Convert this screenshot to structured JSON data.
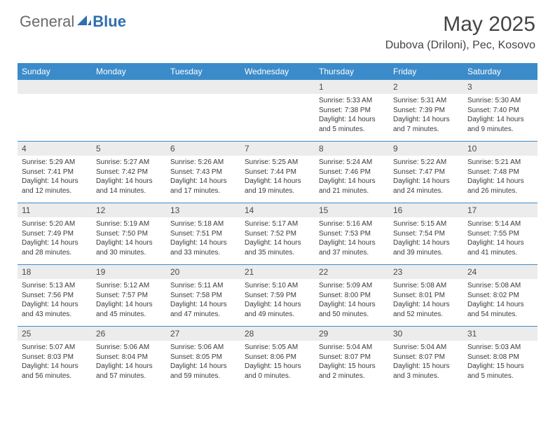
{
  "brand": {
    "part1": "General",
    "part2": "Blue"
  },
  "colors": {
    "header_bg": "#3b8bca",
    "header_text": "#ffffff",
    "daynum_bg": "#ececec",
    "border": "#3b8bca",
    "logo_gray": "#6a6a6a",
    "logo_blue": "#2f6fae"
  },
  "title": "May 2025",
  "location": "Dubova (Driloni), Pec, Kosovo",
  "day_headers": [
    "Sunday",
    "Monday",
    "Tuesday",
    "Wednesday",
    "Thursday",
    "Friday",
    "Saturday"
  ],
  "weeks": [
    [
      {
        "n": "",
        "sunrise": "",
        "sunset": "",
        "daylight": ""
      },
      {
        "n": "",
        "sunrise": "",
        "sunset": "",
        "daylight": ""
      },
      {
        "n": "",
        "sunrise": "",
        "sunset": "",
        "daylight": ""
      },
      {
        "n": "",
        "sunrise": "",
        "sunset": "",
        "daylight": ""
      },
      {
        "n": "1",
        "sunrise": "Sunrise: 5:33 AM",
        "sunset": "Sunset: 7:38 PM",
        "daylight": "Daylight: 14 hours and 5 minutes."
      },
      {
        "n": "2",
        "sunrise": "Sunrise: 5:31 AM",
        "sunset": "Sunset: 7:39 PM",
        "daylight": "Daylight: 14 hours and 7 minutes."
      },
      {
        "n": "3",
        "sunrise": "Sunrise: 5:30 AM",
        "sunset": "Sunset: 7:40 PM",
        "daylight": "Daylight: 14 hours and 9 minutes."
      }
    ],
    [
      {
        "n": "4",
        "sunrise": "Sunrise: 5:29 AM",
        "sunset": "Sunset: 7:41 PM",
        "daylight": "Daylight: 14 hours and 12 minutes."
      },
      {
        "n": "5",
        "sunrise": "Sunrise: 5:27 AM",
        "sunset": "Sunset: 7:42 PM",
        "daylight": "Daylight: 14 hours and 14 minutes."
      },
      {
        "n": "6",
        "sunrise": "Sunrise: 5:26 AM",
        "sunset": "Sunset: 7:43 PM",
        "daylight": "Daylight: 14 hours and 17 minutes."
      },
      {
        "n": "7",
        "sunrise": "Sunrise: 5:25 AM",
        "sunset": "Sunset: 7:44 PM",
        "daylight": "Daylight: 14 hours and 19 minutes."
      },
      {
        "n": "8",
        "sunrise": "Sunrise: 5:24 AM",
        "sunset": "Sunset: 7:46 PM",
        "daylight": "Daylight: 14 hours and 21 minutes."
      },
      {
        "n": "9",
        "sunrise": "Sunrise: 5:22 AM",
        "sunset": "Sunset: 7:47 PM",
        "daylight": "Daylight: 14 hours and 24 minutes."
      },
      {
        "n": "10",
        "sunrise": "Sunrise: 5:21 AM",
        "sunset": "Sunset: 7:48 PM",
        "daylight": "Daylight: 14 hours and 26 minutes."
      }
    ],
    [
      {
        "n": "11",
        "sunrise": "Sunrise: 5:20 AM",
        "sunset": "Sunset: 7:49 PM",
        "daylight": "Daylight: 14 hours and 28 minutes."
      },
      {
        "n": "12",
        "sunrise": "Sunrise: 5:19 AM",
        "sunset": "Sunset: 7:50 PM",
        "daylight": "Daylight: 14 hours and 30 minutes."
      },
      {
        "n": "13",
        "sunrise": "Sunrise: 5:18 AM",
        "sunset": "Sunset: 7:51 PM",
        "daylight": "Daylight: 14 hours and 33 minutes."
      },
      {
        "n": "14",
        "sunrise": "Sunrise: 5:17 AM",
        "sunset": "Sunset: 7:52 PM",
        "daylight": "Daylight: 14 hours and 35 minutes."
      },
      {
        "n": "15",
        "sunrise": "Sunrise: 5:16 AM",
        "sunset": "Sunset: 7:53 PM",
        "daylight": "Daylight: 14 hours and 37 minutes."
      },
      {
        "n": "16",
        "sunrise": "Sunrise: 5:15 AM",
        "sunset": "Sunset: 7:54 PM",
        "daylight": "Daylight: 14 hours and 39 minutes."
      },
      {
        "n": "17",
        "sunrise": "Sunrise: 5:14 AM",
        "sunset": "Sunset: 7:55 PM",
        "daylight": "Daylight: 14 hours and 41 minutes."
      }
    ],
    [
      {
        "n": "18",
        "sunrise": "Sunrise: 5:13 AM",
        "sunset": "Sunset: 7:56 PM",
        "daylight": "Daylight: 14 hours and 43 minutes."
      },
      {
        "n": "19",
        "sunrise": "Sunrise: 5:12 AM",
        "sunset": "Sunset: 7:57 PM",
        "daylight": "Daylight: 14 hours and 45 minutes."
      },
      {
        "n": "20",
        "sunrise": "Sunrise: 5:11 AM",
        "sunset": "Sunset: 7:58 PM",
        "daylight": "Daylight: 14 hours and 47 minutes."
      },
      {
        "n": "21",
        "sunrise": "Sunrise: 5:10 AM",
        "sunset": "Sunset: 7:59 PM",
        "daylight": "Daylight: 14 hours and 49 minutes."
      },
      {
        "n": "22",
        "sunrise": "Sunrise: 5:09 AM",
        "sunset": "Sunset: 8:00 PM",
        "daylight": "Daylight: 14 hours and 50 minutes."
      },
      {
        "n": "23",
        "sunrise": "Sunrise: 5:08 AM",
        "sunset": "Sunset: 8:01 PM",
        "daylight": "Daylight: 14 hours and 52 minutes."
      },
      {
        "n": "24",
        "sunrise": "Sunrise: 5:08 AM",
        "sunset": "Sunset: 8:02 PM",
        "daylight": "Daylight: 14 hours and 54 minutes."
      }
    ],
    [
      {
        "n": "25",
        "sunrise": "Sunrise: 5:07 AM",
        "sunset": "Sunset: 8:03 PM",
        "daylight": "Daylight: 14 hours and 56 minutes."
      },
      {
        "n": "26",
        "sunrise": "Sunrise: 5:06 AM",
        "sunset": "Sunset: 8:04 PM",
        "daylight": "Daylight: 14 hours and 57 minutes."
      },
      {
        "n": "27",
        "sunrise": "Sunrise: 5:06 AM",
        "sunset": "Sunset: 8:05 PM",
        "daylight": "Daylight: 14 hours and 59 minutes."
      },
      {
        "n": "28",
        "sunrise": "Sunrise: 5:05 AM",
        "sunset": "Sunset: 8:06 PM",
        "daylight": "Daylight: 15 hours and 0 minutes."
      },
      {
        "n": "29",
        "sunrise": "Sunrise: 5:04 AM",
        "sunset": "Sunset: 8:07 PM",
        "daylight": "Daylight: 15 hours and 2 minutes."
      },
      {
        "n": "30",
        "sunrise": "Sunrise: 5:04 AM",
        "sunset": "Sunset: 8:07 PM",
        "daylight": "Daylight: 15 hours and 3 minutes."
      },
      {
        "n": "31",
        "sunrise": "Sunrise: 5:03 AM",
        "sunset": "Sunset: 8:08 PM",
        "daylight": "Daylight: 15 hours and 5 minutes."
      }
    ]
  ]
}
